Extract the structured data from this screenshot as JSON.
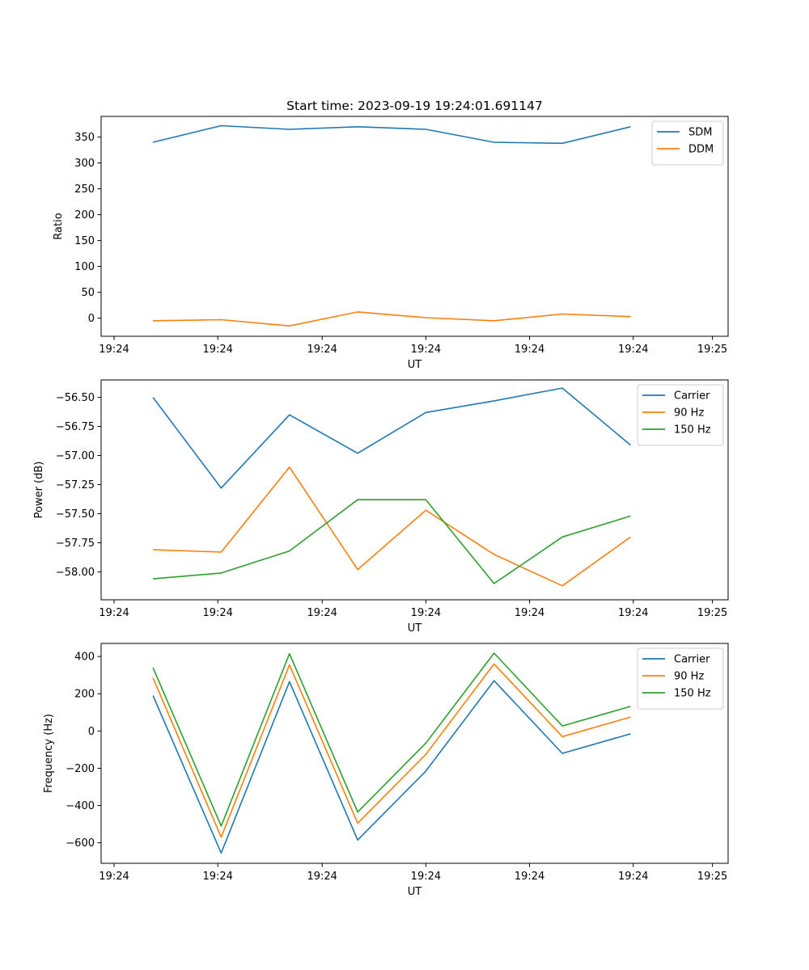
{
  "title": "Start time: 2023-09-19 19:24:01.691147",
  "chart_data": [
    {
      "type": "line",
      "title": "Start time: 2023-09-19 19:24:01.691147",
      "xlabel": "UT",
      "ylabel": "Ratio",
      "x_index": [
        1,
        2,
        3,
        4,
        5,
        6,
        7,
        8
      ],
      "xlim": [
        0.24,
        9.43
      ],
      "xticks": [
        0.43,
        1.95,
        3.48,
        5.0,
        6.52,
        8.04,
        9.2
      ],
      "xtick_labels": [
        "19:24",
        "19:24",
        "19:24",
        "19:24",
        "19:24",
        "19:24",
        "19:25"
      ],
      "ylim": [
        -35,
        390
      ],
      "yticks": [
        0,
        50,
        100,
        150,
        200,
        250,
        300,
        350
      ],
      "ytick_labels": [
        "0",
        "50",
        "100",
        "150",
        "200",
        "250",
        "300",
        "350"
      ],
      "legend": "top-right",
      "series": [
        {
          "name": "SDM",
          "color": "#1f77b4",
          "values": [
            340,
            372,
            365,
            370,
            365,
            340,
            338,
            370
          ]
        },
        {
          "name": "DDM",
          "color": "#ff7f0e",
          "values": [
            -5,
            -3,
            -15,
            12,
            1,
            -5,
            8,
            3
          ]
        }
      ]
    },
    {
      "type": "line",
      "xlabel": "UT",
      "ylabel": "Power (dB)",
      "x_index": [
        1,
        2,
        3,
        4,
        5,
        6,
        7,
        8
      ],
      "xlim": [
        0.24,
        9.43
      ],
      "xticks": [
        0.43,
        1.95,
        3.48,
        5.0,
        6.52,
        8.04,
        9.2
      ],
      "xtick_labels": [
        "19:24",
        "19:24",
        "19:24",
        "19:24",
        "19:24",
        "19:24",
        "19:25"
      ],
      "ylim": [
        -58.24,
        -56.35
      ],
      "yticks": [
        -58.0,
        -57.75,
        -57.5,
        -57.25,
        -57.0,
        -56.75,
        -56.5
      ],
      "ytick_labels": [
        "−58.00",
        "−57.75",
        "−57.50",
        "−57.25",
        "−57.00",
        "−56.75",
        "−56.50"
      ],
      "legend": "top-right",
      "series": [
        {
          "name": "Carrier",
          "color": "#1f77b4",
          "values": [
            -56.5,
            -57.28,
            -56.65,
            -56.98,
            -56.63,
            -56.53,
            -56.42,
            -56.91
          ]
        },
        {
          "name": "90 Hz",
          "color": "#ff7f0e",
          "values": [
            -57.81,
            -57.83,
            -57.1,
            -57.98,
            -57.47,
            -57.85,
            -58.12,
            -57.7
          ]
        },
        {
          "name": "150 Hz",
          "color": "#2ca02c",
          "values": [
            -58.06,
            -58.01,
            -57.82,
            -57.38,
            -57.38,
            -58.1,
            -57.7,
            -57.52
          ]
        }
      ]
    },
    {
      "type": "line",
      "xlabel": "UT",
      "ylabel": "Frequency (Hz)",
      "x_index": [
        1,
        2,
        3,
        4,
        5,
        6,
        7,
        8
      ],
      "xlim": [
        0.24,
        9.43
      ],
      "xticks": [
        0.43,
        1.95,
        3.48,
        5.0,
        6.52,
        8.04,
        9.2
      ],
      "xtick_labels": [
        "19:24",
        "19:24",
        "19:24",
        "19:24",
        "19:24",
        "19:24",
        "19:25"
      ],
      "ylim": [
        -710,
        470
      ],
      "yticks": [
        -600,
        -400,
        -200,
        0,
        200,
        400
      ],
      "ytick_labels": [
        "−600",
        "−400",
        "−200",
        "0",
        "200",
        "400"
      ],
      "legend": "top-right",
      "series": [
        {
          "name": "Carrier",
          "color": "#1f77b4",
          "values": [
            190,
            -655,
            265,
            -585,
            -215,
            270,
            -120,
            -15
          ]
        },
        {
          "name": "90 Hz",
          "color": "#ff7f0e",
          "values": [
            285,
            -570,
            355,
            -495,
            -125,
            360,
            -30,
            75
          ]
        },
        {
          "name": "150 Hz",
          "color": "#2ca02c",
          "values": [
            340,
            -510,
            415,
            -435,
            -65,
            418,
            27,
            132
          ]
        }
      ]
    }
  ]
}
